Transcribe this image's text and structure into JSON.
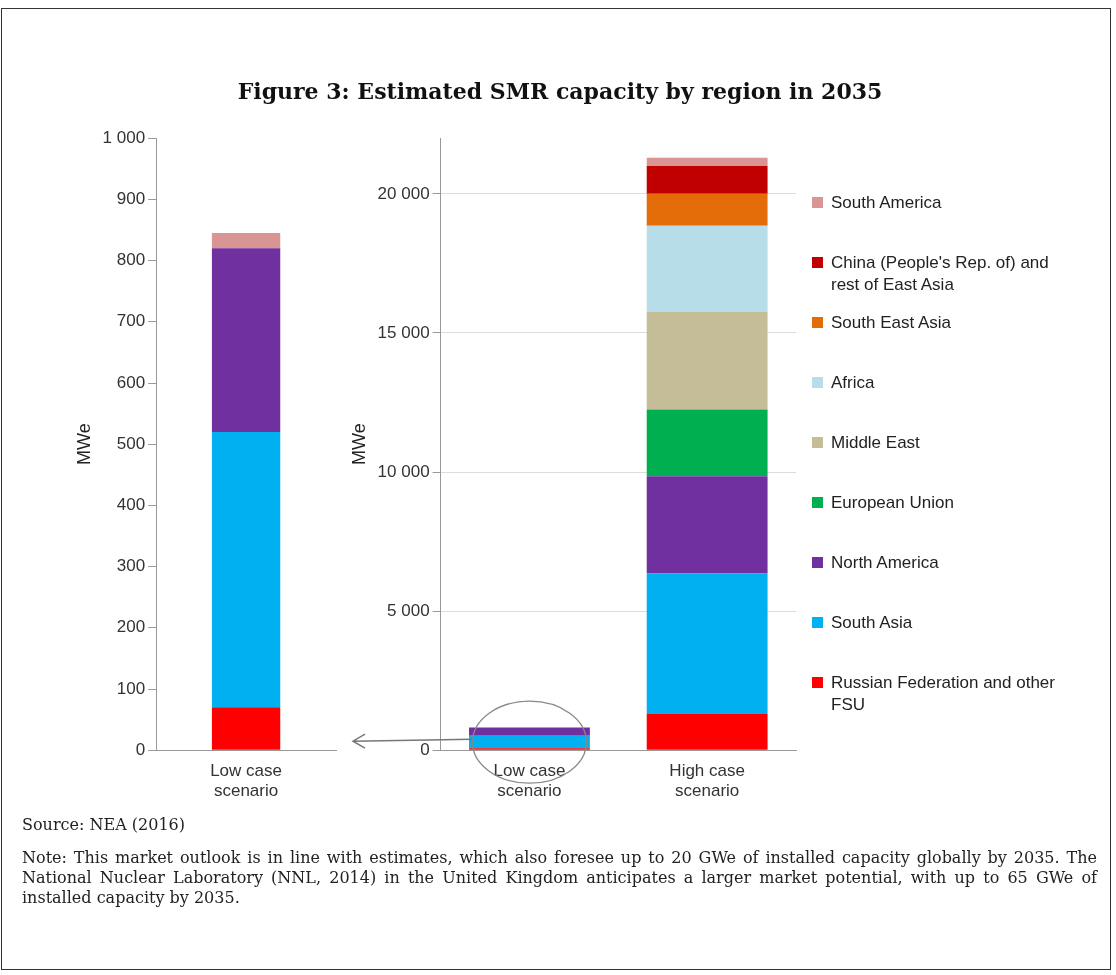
{
  "chart_data": [
    {
      "type": "bar",
      "stacked": true,
      "categories": [
        "Low case scenario"
      ],
      "ylabel": "MWe",
      "ylim": [
        0,
        1000
      ],
      "yticks": [
        0,
        100,
        200,
        300,
        400,
        500,
        600,
        700,
        800,
        900,
        {
          "value": 1000,
          "label": "1 000"
        }
      ],
      "grid": false,
      "legend": false,
      "series": [
        {
          "color": "#ff0000",
          "values": [
            70
          ]
        },
        {
          "color": "#00b0f0",
          "values": [
            450
          ]
        },
        {
          "color": "#7030a0",
          "values": [
            300
          ]
        },
        {
          "color": "#d99594",
          "values": [
            25
          ]
        }
      ]
    },
    {
      "type": "bar",
      "stacked": true,
      "title": "Figure 3: Estimated SMR capacity by region in 2035",
      "categories": [
        "Low case scenario",
        "High case scenario"
      ],
      "ylabel": "MWe",
      "ylim": [
        0,
        22000
      ],
      "yticks": [
        0,
        {
          "value": 5000,
          "label": "5 000"
        },
        {
          "value": 10000,
          "label": "10 000"
        },
        {
          "value": 15000,
          "label": "15 000"
        },
        {
          "value": 20000,
          "label": "20 000"
        }
      ],
      "grid": "y",
      "legend": "right",
      "series": [
        {
          "name": "Russian Federation and other FSU",
          "color": "#ff0000",
          "values": [
            70,
            1300
          ]
        },
        {
          "name": "South Asia",
          "color": "#00b0f0",
          "values": [
            450,
            5050
          ]
        },
        {
          "name": "North America",
          "color": "#7030a0",
          "values": [
            300,
            3500
          ]
        },
        {
          "name": "European Union",
          "color": "#00b050",
          "values": [
            0,
            2400
          ]
        },
        {
          "name": "Middle East",
          "color": "#c4bd97",
          "values": [
            0,
            3500
          ]
        },
        {
          "name": "Africa",
          "color": "#b7dee8",
          "values": [
            0,
            3100
          ]
        },
        {
          "name": "South East Asia",
          "color": "#e36c09",
          "values": [
            0,
            1150
          ]
        },
        {
          "name": "China (People's Rep. of) and rest of East Asia",
          "color": "#c00000",
          "values": [
            0,
            1000
          ]
        },
        {
          "name": "South America",
          "color": "#d99594",
          "values": [
            0,
            300
          ]
        }
      ],
      "annotations": [
        "Source: NEA (2016)",
        "Note: This market outlook is in line with estimates, which also foresee up to 20 GWe of installed capacity globally by 2035. The National Nuclear Laboratory (NNL, 2014) in the United Kingdom anticipates a larger market potential, with up to 65 GWe of installed capacity by 2035."
      ]
    }
  ]
}
